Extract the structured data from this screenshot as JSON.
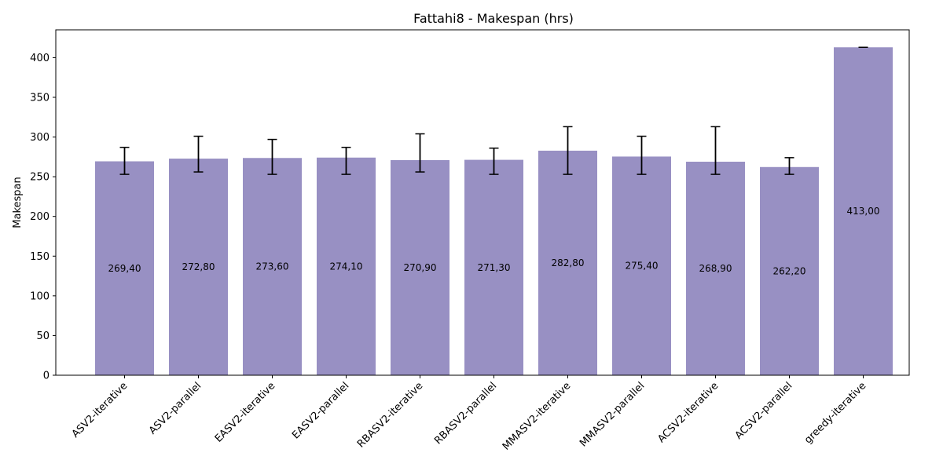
{
  "chart_data": {
    "type": "bar",
    "title": "Fattahi8 - Makespan (hrs)",
    "xlabel": "",
    "ylabel": "Makespan",
    "ylim": [
      0,
      435
    ],
    "yticks": [
      0,
      50,
      100,
      150,
      200,
      250,
      300,
      350,
      400
    ],
    "categories": [
      "ASV2-iterative",
      "ASV2-parallel",
      "EASV2-iterative",
      "EASV2-parallel",
      "RBASV2-iterative",
      "RBASV2-parallel",
      "MMASV2-iterative",
      "MMASV2-parallel",
      "ACSV2-iterative",
      "ACSV2-parallel",
      "greedy-iterative"
    ],
    "values": [
      269.4,
      272.8,
      273.6,
      274.1,
      270.9,
      271.3,
      282.8,
      275.4,
      268.9,
      262.2,
      413.0
    ],
    "value_labels": [
      "269,40",
      "272,80",
      "273,60",
      "274,10",
      "270,90",
      "271,30",
      "282,80",
      "275,40",
      "268,90",
      "262,20",
      "413,00"
    ],
    "error_low": [
      253,
      256,
      253,
      253,
      256,
      253,
      253,
      253,
      253,
      253,
      413
    ],
    "error_high": [
      287,
      301,
      297,
      287,
      304,
      286,
      313,
      301,
      313,
      274,
      413
    ],
    "bar_color": "#9890c3",
    "grid": false,
    "legend": "none"
  }
}
